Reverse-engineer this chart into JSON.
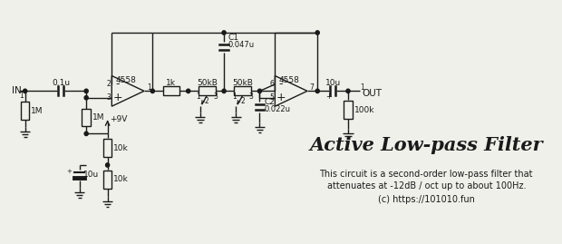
{
  "title": "Active Low-pass Filter",
  "subtitle_line1": "This circuit is a second-order low-pass filter that",
  "subtitle_line2": "attenuates at -12dB / oct up to about 100Hz.",
  "subtitle_line3": "(c) https://101010.fun",
  "bg_color": "#f0f0ea",
  "line_color": "#1a1a1a",
  "text_color": "#1a1a1a",
  "figsize": [
    6.2,
    2.69
  ],
  "dpi": 100
}
